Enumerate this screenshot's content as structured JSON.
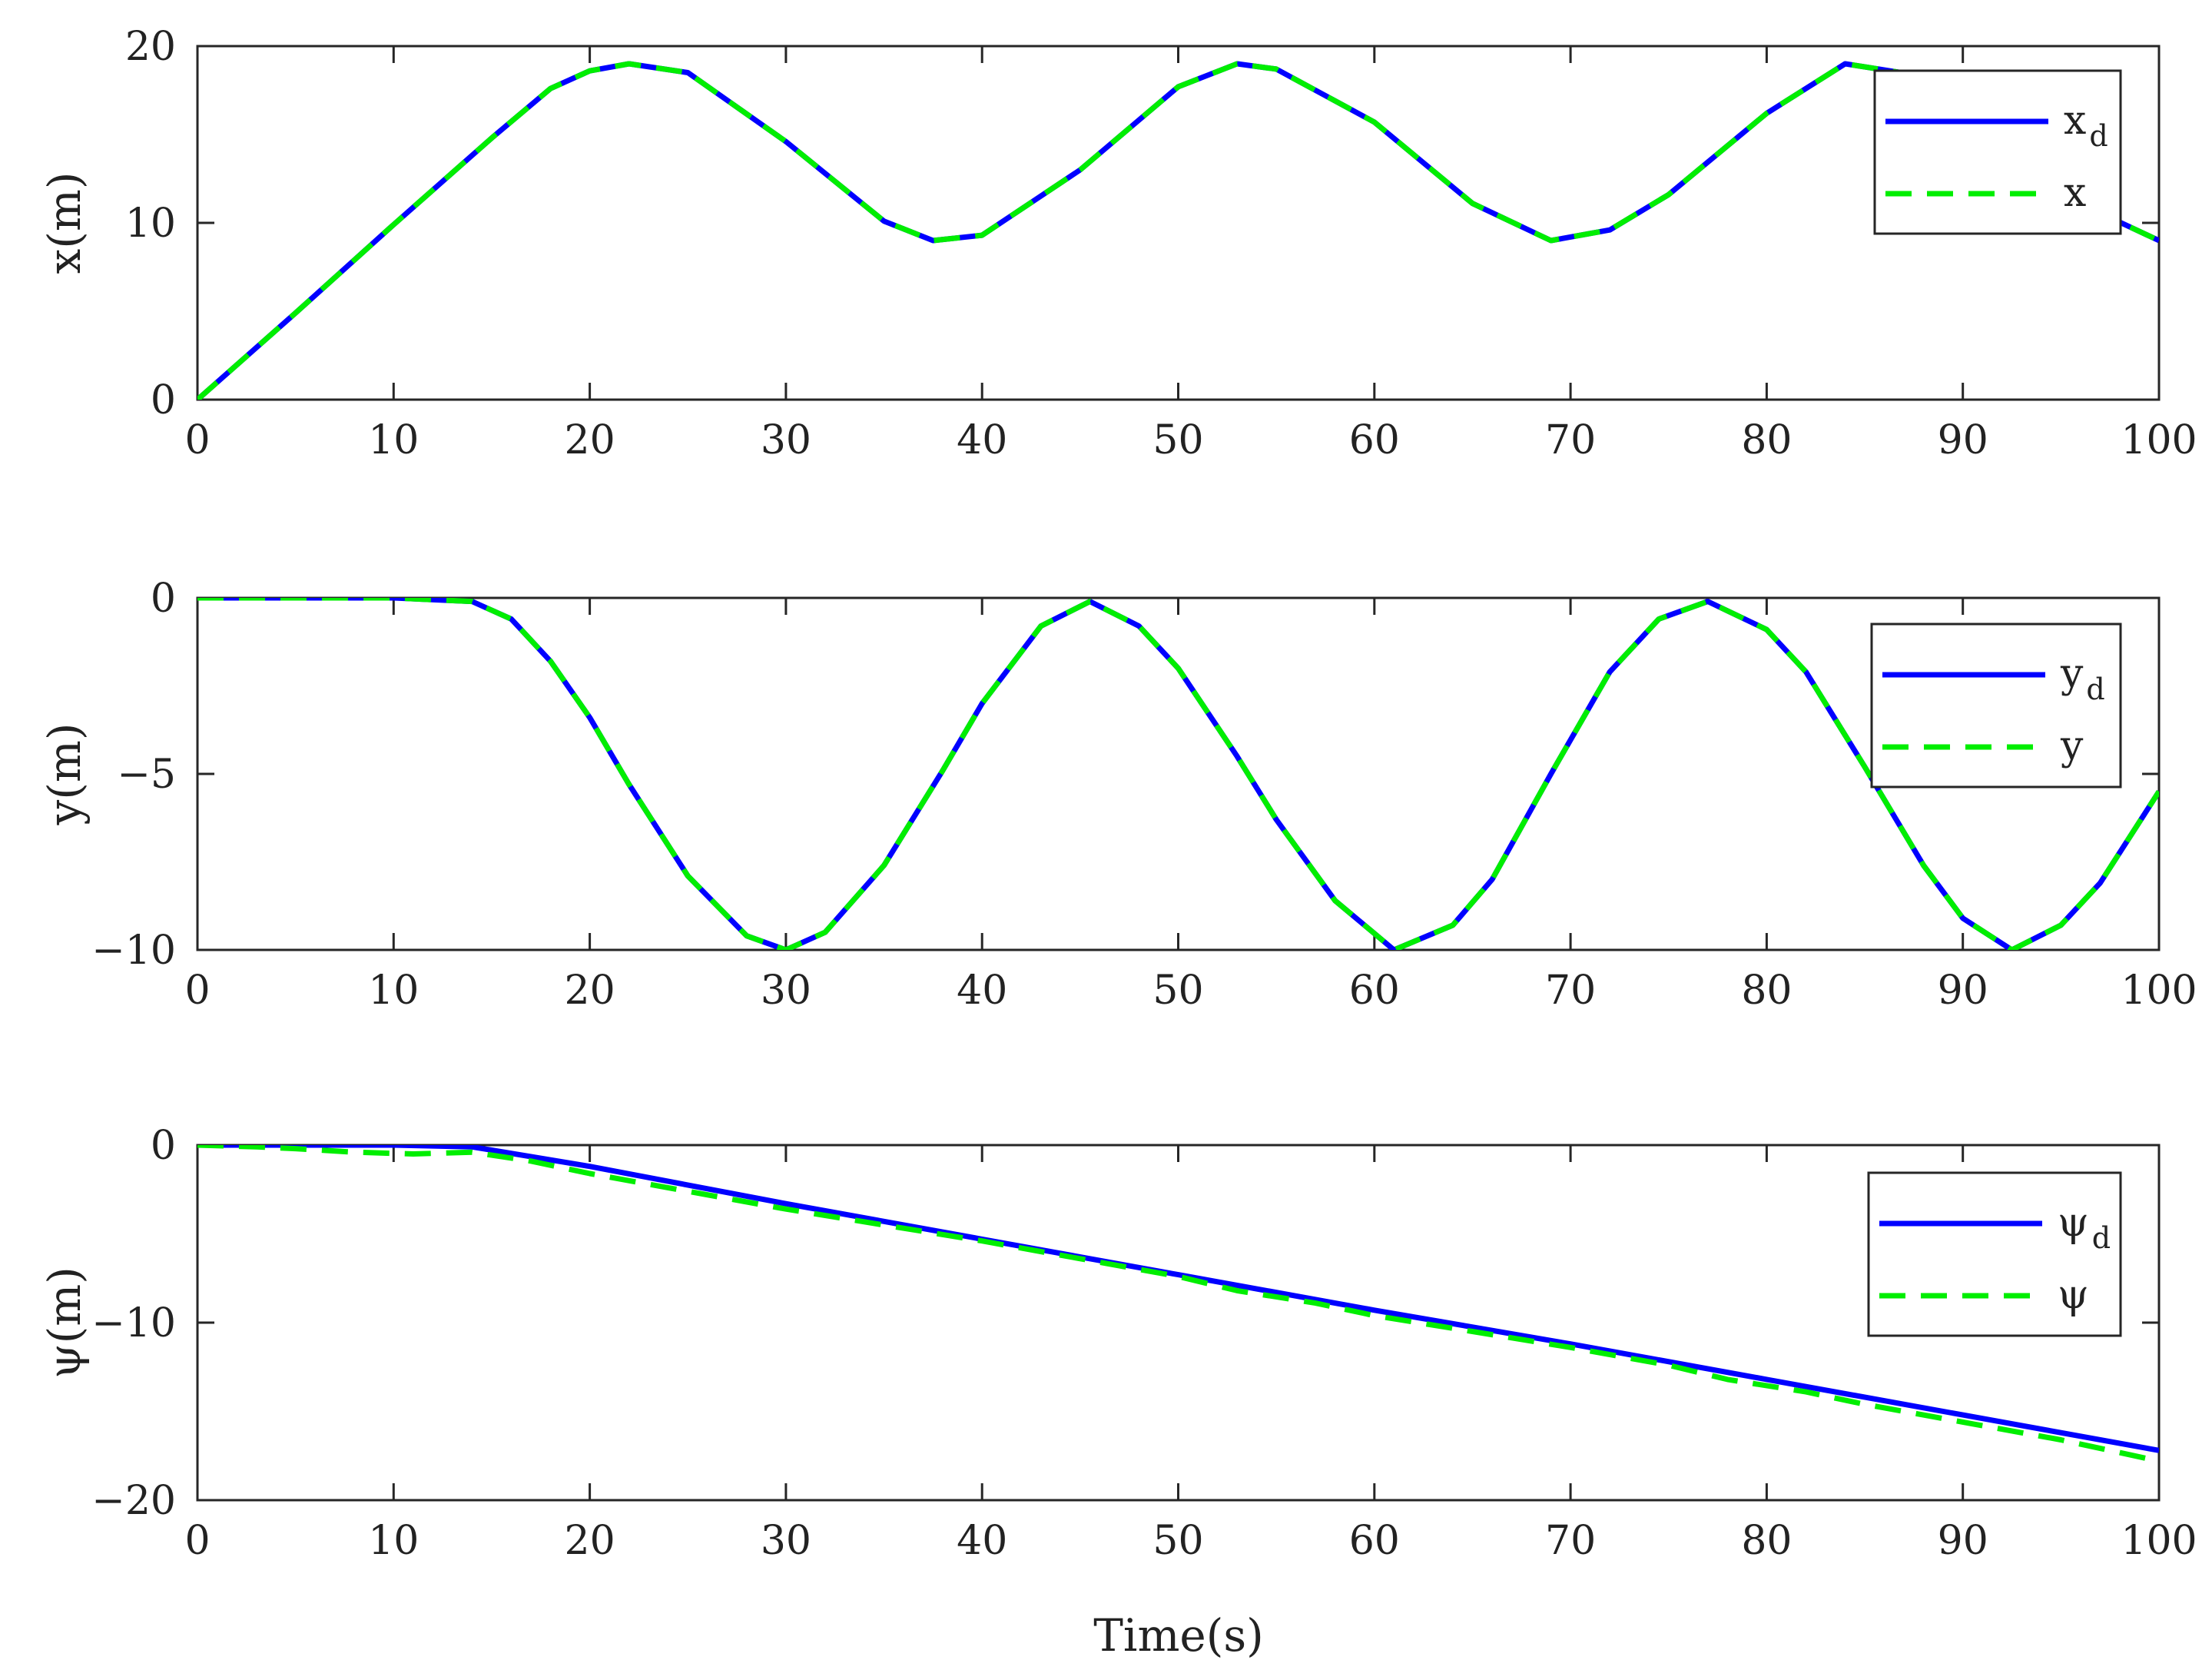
{
  "figure": {
    "xlabel": "Time(s)",
    "colors": {
      "desired": "#0000ff",
      "actual": "#00ee00",
      "axes": "#262626",
      "text": "#222222"
    }
  },
  "chart_data": [
    {
      "type": "line",
      "id": "x",
      "ylabel": "x(m)",
      "xlim": [
        0,
        100
      ],
      "ylim": [
        0,
        20
      ],
      "xticks": [
        0,
        10,
        20,
        30,
        40,
        50,
        60,
        70,
        80,
        90,
        100
      ],
      "yticks": [
        0,
        10,
        20
      ],
      "yticklabels": [
        "0",
        "10",
        "20"
      ],
      "legend_position": "top-right",
      "x": [
        0,
        5,
        10,
        15,
        18,
        20,
        22,
        25,
        30,
        35,
        37.5,
        40,
        45,
        50,
        53,
        55,
        60,
        65,
        69,
        72,
        75,
        80,
        84,
        88,
        90,
        95,
        100
      ],
      "series": [
        {
          "name": "x_d",
          "label": "x",
          "sub": "d",
          "style": "solid",
          "values": [
            0,
            4.9,
            9.9,
            14.8,
            17.6,
            18.6,
            19.0,
            18.5,
            14.6,
            10.1,
            9.0,
            9.3,
            13.0,
            17.7,
            19.0,
            18.7,
            15.7,
            11.1,
            9.0,
            9.6,
            11.6,
            16.2,
            19.0,
            18.3,
            17.1,
            11.6,
            9.0
          ]
        },
        {
          "name": "x",
          "label": "x",
          "sub": "",
          "style": "dashed",
          "values": [
            0,
            4.9,
            9.9,
            14.8,
            17.6,
            18.6,
            19.0,
            18.5,
            14.6,
            10.1,
            9.0,
            9.3,
            13.0,
            17.7,
            19.0,
            18.7,
            15.7,
            11.1,
            9.0,
            9.6,
            11.6,
            16.2,
            19.0,
            18.3,
            17.1,
            11.6,
            9.0
          ]
        }
      ]
    },
    {
      "type": "line",
      "id": "y",
      "ylabel": "y(m)",
      "xlim": [
        0,
        100
      ],
      "ylim": [
        -10,
        0
      ],
      "xticks": [
        0,
        10,
        20,
        30,
        40,
        50,
        60,
        70,
        80,
        90,
        100
      ],
      "yticks": [
        -10,
        -5,
        0
      ],
      "yticklabels": [
        "−10",
        "−5",
        "0"
      ],
      "legend_position": "top-right",
      "x": [
        0,
        5,
        10,
        14,
        16,
        18,
        20,
        22,
        25,
        28,
        30,
        32,
        35,
        38,
        40,
        43,
        45.5,
        48,
        50,
        53,
        55,
        58,
        61,
        64,
        66,
        69,
        72,
        74.5,
        77,
        80,
        82,
        85,
        88,
        90,
        92.5,
        95,
        97,
        100
      ],
      "series": [
        {
          "name": "y_d",
          "label": "y",
          "sub": "d",
          "style": "solid",
          "values": [
            0,
            0,
            0,
            -0.1,
            -0.6,
            -1.8,
            -3.4,
            -5.3,
            -7.9,
            -9.6,
            -10.0,
            -9.5,
            -7.6,
            -4.9,
            -3.0,
            -0.8,
            -0.1,
            -0.8,
            -2.0,
            -4.5,
            -6.3,
            -8.6,
            -10.0,
            -9.3,
            -8.0,
            -5.0,
            -2.1,
            -0.6,
            -0.1,
            -0.9,
            -2.1,
            -4.8,
            -7.6,
            -9.1,
            -10.0,
            -9.3,
            -8.1,
            -5.5
          ]
        },
        {
          "name": "y",
          "label": "y",
          "sub": "",
          "style": "dashed",
          "values": [
            0,
            0,
            0,
            -0.1,
            -0.6,
            -1.8,
            -3.4,
            -5.3,
            -7.9,
            -9.6,
            -10.0,
            -9.5,
            -7.6,
            -4.9,
            -3.0,
            -0.8,
            -0.1,
            -0.8,
            -2.0,
            -4.5,
            -6.3,
            -8.6,
            -10.0,
            -9.3,
            -8.0,
            -5.0,
            -2.1,
            -0.6,
            -0.1,
            -0.9,
            -2.1,
            -4.8,
            -7.6,
            -9.1,
            -10.0,
            -9.3,
            -8.1,
            -5.5
          ]
        }
      ]
    },
    {
      "type": "line",
      "id": "psi",
      "ylabel": "ψ(m)",
      "xlim": [
        0,
        100
      ],
      "ylim": [
        -20,
        0
      ],
      "xticks": [
        0,
        10,
        20,
        30,
        40,
        50,
        60,
        70,
        80,
        90,
        100
      ],
      "yticks": [
        -20,
        -10,
        0
      ],
      "yticklabels": [
        "−20",
        "−10",
        "0"
      ],
      "legend_position": "top-right",
      "series": [
        {
          "name": "ψ_d",
          "label": "ψ",
          "sub": "d",
          "style": "solid",
          "x": [
            0,
            5,
            10,
            14,
            20,
            30,
            40,
            50,
            60,
            70,
            80,
            90,
            100
          ],
          "values": [
            0,
            0,
            0,
            -0.1,
            -1.2,
            -3.3,
            -5.3,
            -7.3,
            -9.3,
            -11.2,
            -13.2,
            -15.2,
            -17.2
          ]
        },
        {
          "name": "ψ",
          "label": "ψ",
          "sub": "",
          "style": "dashed",
          "x": [
            0,
            3,
            5,
            8,
            11,
            14,
            17,
            20,
            25,
            30,
            35,
            40,
            45,
            50,
            53,
            57,
            60,
            65,
            70,
            75,
            78,
            82,
            85,
            90,
            95,
            100
          ],
          "values": [
            0,
            -0.1,
            -0.2,
            -0.4,
            -0.5,
            -0.4,
            -0.9,
            -1.6,
            -2.6,
            -3.6,
            -4.5,
            -5.4,
            -6.4,
            -7.4,
            -8.2,
            -8.9,
            -9.6,
            -10.5,
            -11.4,
            -12.4,
            -13.2,
            -13.9,
            -14.6,
            -15.6,
            -16.6,
            -17.8
          ]
        }
      ]
    }
  ]
}
